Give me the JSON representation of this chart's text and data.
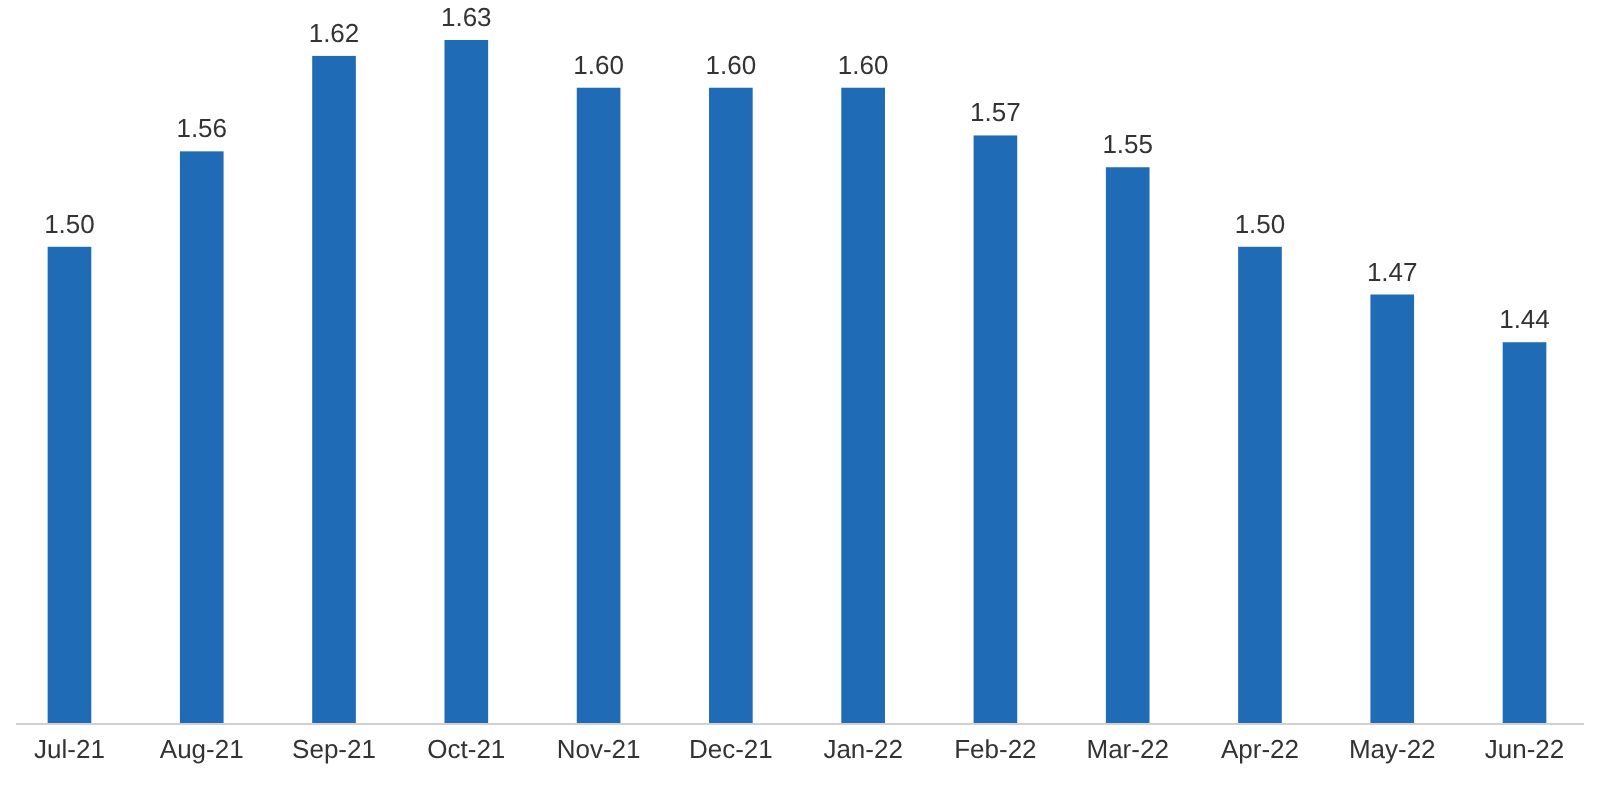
{
  "chart_data": {
    "type": "bar",
    "categories": [
      "Jul-21",
      "Aug-21",
      "Sep-21",
      "Oct-21",
      "Nov-21",
      "Dec-21",
      "Jan-22",
      "Feb-22",
      "Mar-22",
      "Apr-22",
      "May-22",
      "Jun-22"
    ],
    "values": [
      1.5,
      1.56,
      1.62,
      1.63,
      1.6,
      1.6,
      1.6,
      1.57,
      1.55,
      1.5,
      1.47,
      1.44
    ],
    "color": "#1f6bb5",
    "value_labels": [
      "1.50",
      "1.56",
      "1.62",
      "1.63",
      "1.60",
      "1.60",
      "1.60",
      "1.57",
      "1.55",
      "1.50",
      "1.47",
      "1.44"
    ],
    "ylim": [
      1.2,
      1.63
    ],
    "tick_labels": "x"
  }
}
